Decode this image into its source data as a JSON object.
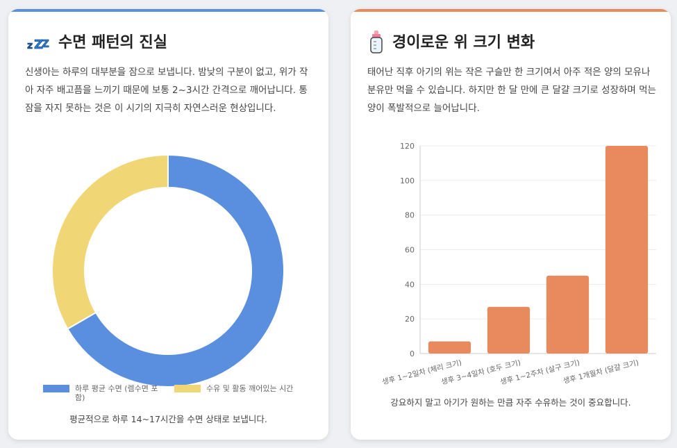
{
  "sleep_card": {
    "title": "수면 패턴의 진실",
    "icon": "zzz-icon",
    "accent": "#5a8fe0",
    "description": "신생아는 하루의 대부분을 잠으로 보냅니다. 밤낮의 구분이 없고, 위가 작아 자주 배고픔을 느끼기 때문에 보통 2~3시간 간격으로 깨어납니다. 통잠을 자지 못하는 것은 이 시기의 지극히 자연스러운 현상입니다.",
    "note": "평균적으로 하루 14~17시간을 수면 상태로 보냅니다."
  },
  "stomach_card": {
    "title": "경이로운 위 크기 변화",
    "icon": "baby-bottle-icon",
    "accent": "#e8895e",
    "description": "태어난 직후 아기의 위는 작은 구슬만 한 크기여서 아주 적은 양의 모유나 분유만 먹을 수 있습니다. 하지만 한 달 만에 큰 달걀 크기로 성장하며 먹는 양이 폭발적으로 늘어납니다.",
    "note": "강요하지 말고 아기가 원하는 만큼 자주 수유하는 것이 중요합니다."
  },
  "chart_data": [
    {
      "type": "pie",
      "variant": "doughnut",
      "labels": [
        "하루 평균 수면 (렘수면 포함)",
        "수유 및 활동 깨어있는 시간"
      ],
      "values": [
        16,
        8
      ],
      "colors": [
        "#5a8fe0",
        "#f0d675"
      ],
      "legend": "bottom"
    },
    {
      "type": "bar",
      "categories": [
        "생후 1~2일차 (체리 크기)",
        "생후 3~4일차 (호두 크기)",
        "생후 1~2주차 (살구 크기)",
        "생후 1개월차 (달걀 크기)"
      ],
      "values": [
        7,
        27,
        45,
        120
      ],
      "color": "#e8895e",
      "ylim": [
        0,
        120
      ],
      "yticks": [
        0,
        20,
        40,
        60,
        80,
        100,
        120
      ],
      "grid": true,
      "title": "",
      "xlabel": "",
      "ylabel": ""
    }
  ]
}
